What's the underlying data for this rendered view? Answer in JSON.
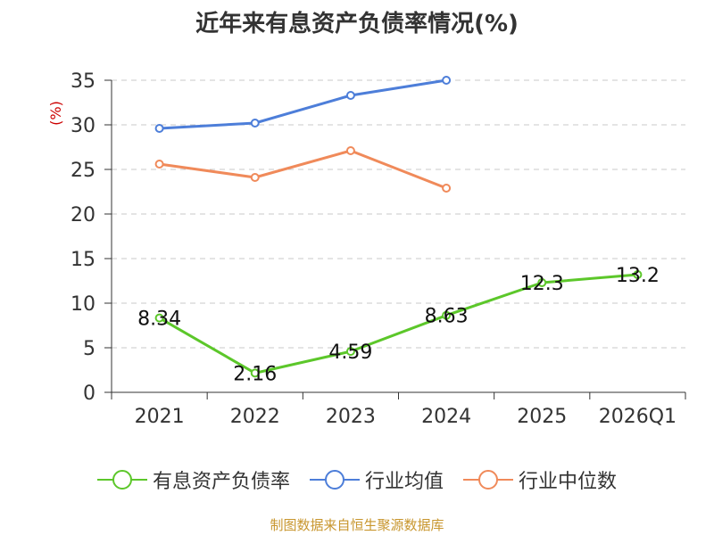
{
  "chart_data": {
    "type": "line",
    "title": "近年来有息资产负债率情况(%)",
    "ylabel": "(%)",
    "xlabel": "",
    "categories": [
      "2021",
      "2022",
      "2023",
      "2024",
      "2025",
      "2026Q1"
    ],
    "ylim": [
      0,
      35
    ],
    "yticks": [
      0,
      5,
      10,
      15,
      20,
      25,
      30,
      35
    ],
    "grid": true,
    "legend_position": "bottom",
    "series": [
      {
        "name": "有息资产负债率",
        "color": "#5cc72a",
        "values": [
          8.34,
          2.16,
          4.59,
          8.63,
          12.3,
          13.2
        ],
        "labels": [
          "8.34",
          "2.16",
          "4.59",
          "8.63",
          "12.3",
          "13.2"
        ]
      },
      {
        "name": "行业均值",
        "color": "#4d7ed9",
        "values": [
          29.6,
          30.2,
          33.3,
          35.0,
          null,
          null
        ]
      },
      {
        "name": "行业中位数",
        "color": "#f08a5a",
        "values": [
          25.6,
          24.1,
          27.1,
          22.9,
          null,
          null
        ]
      }
    ]
  },
  "source": "制图数据来自恒生聚源数据库"
}
